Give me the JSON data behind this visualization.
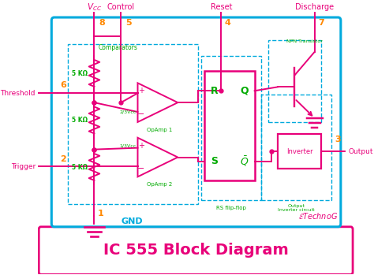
{
  "title": "IC 555 Block Diagram",
  "title_color": "#e8007a",
  "bg_color": "#ffffff",
  "outer_box_color": "#00aadd",
  "circuit_line_color": "#e8007a",
  "green_text_color": "#00aa00",
  "orange_text_color": "#ff8800",
  "blue_text_color": "#00aadd",
  "dashed_box_color": "#00aadd",
  "xlim": [
    0,
    47.4
  ],
  "ylim": [
    0,
    34.9
  ]
}
